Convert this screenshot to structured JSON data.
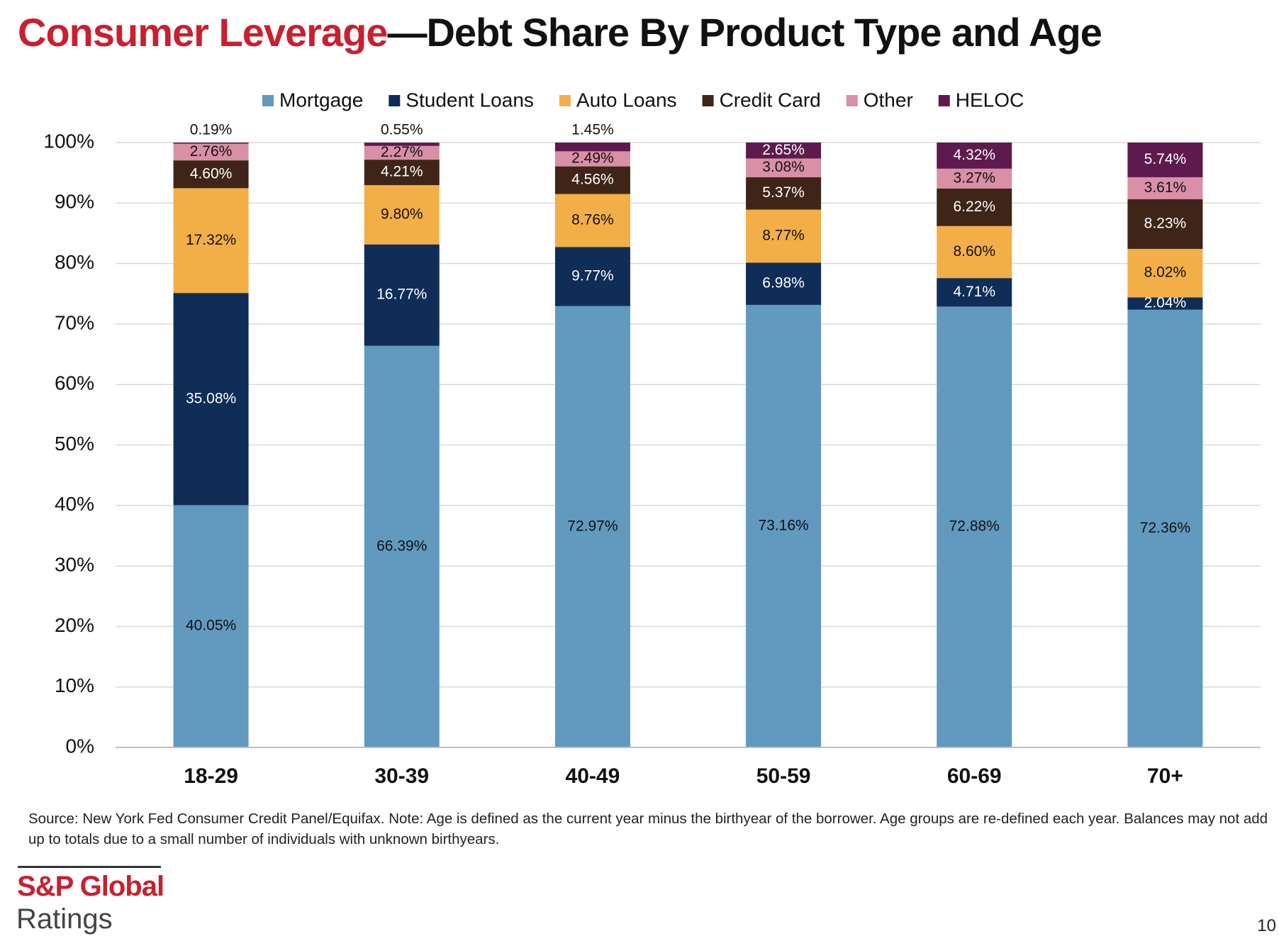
{
  "header": {
    "title_lead": "Consumer Leverage",
    "title_main": "—Debt Share By Product Type and Age"
  },
  "chart_data": {
    "type": "stacked_bar",
    "categories": [
      "18-29",
      "30-39",
      "40-49",
      "50-59",
      "60-69",
      "70+"
    ],
    "series": [
      {
        "name": "Mortgage",
        "color": "#6199bf",
        "values": [
          40.05,
          66.39,
          72.97,
          73.16,
          72.88,
          72.36
        ],
        "value_labels": [
          "40.05%",
          "66.39%",
          "72.97%",
          "73.16%",
          "72.88%",
          "72.36%"
        ]
      },
      {
        "name": "Student Loans",
        "color": "#0f2d57",
        "values": [
          35.08,
          16.77,
          9.77,
          6.98,
          4.71,
          2.04
        ],
        "value_labels": [
          "35.08%",
          "16.77%",
          "9.77%",
          "6.98%",
          "4.71%",
          "2.04%"
        ]
      },
      {
        "name": "Auto Loans",
        "color": "#f2ae47",
        "values": [
          17.32,
          9.8,
          8.76,
          8.77,
          8.6,
          8.02
        ],
        "value_labels": [
          "17.32%",
          "9.80%",
          "8.76%",
          "8.77%",
          "8.60%",
          "8.02%"
        ]
      },
      {
        "name": "Credit Card",
        "color": "#3e2518",
        "values": [
          4.6,
          4.21,
          4.56,
          5.37,
          6.22,
          8.23
        ],
        "value_labels": [
          "4.60%",
          "4.21%",
          "4.56%",
          "5.37%",
          "6.22%",
          "8.23%"
        ]
      },
      {
        "name": "Other",
        "color": "#d98fa6",
        "values": [
          2.76,
          2.27,
          2.49,
          3.08,
          3.27,
          3.61
        ],
        "value_labels": [
          "2.76%",
          "2.27%",
          "2.49%",
          "3.08%",
          "3.27%",
          "3.61%"
        ]
      },
      {
        "name": "HELOC",
        "color": "#5e1a4f",
        "values": [
          0.19,
          0.55,
          1.45,
          2.65,
          4.32,
          5.74
        ],
        "value_labels": [
          "0.19%",
          "0.55%",
          "1.45%",
          "2.65%",
          "4.32%",
          "5.74%"
        ]
      }
    ],
    "ylim": [
      0,
      100
    ],
    "yticks": [
      {
        "value": 0,
        "label": "0%"
      },
      {
        "value": 10,
        "label": "10%"
      },
      {
        "value": 20,
        "label": "20%"
      },
      {
        "value": 30,
        "label": "30%"
      },
      {
        "value": 40,
        "label": "40%"
      },
      {
        "value": 50,
        "label": "50%"
      },
      {
        "value": 60,
        "label": "60%"
      },
      {
        "value": 70,
        "label": "70%"
      },
      {
        "value": 80,
        "label": "80%"
      },
      {
        "value": 90,
        "label": "90%"
      },
      {
        "value": 100,
        "label": "100%"
      }
    ],
    "grid": true,
    "legend": "top"
  },
  "footer": {
    "source": "Source: New York Fed Consumer Credit Panel/Equifax. Note: Age is defined as the current year minus the birthyear of the borrower. Age groups are re-defined each year. Balances may not add up to totals due to a small number of individuals with unknown birthyears.",
    "brand": "S&P Global",
    "brand_sub": "Ratings",
    "page": "10"
  }
}
